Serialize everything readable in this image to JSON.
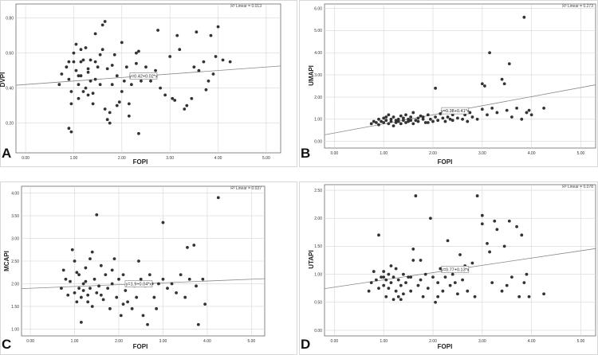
{
  "chart_data": [
    {
      "type": "scatter",
      "panel_label": "A",
      "xlabel": "FOPI",
      "ylabel": "DVPI",
      "xlim": [
        -0.2,
        5.3
      ],
      "ylim": [
        0.03,
        0.88
      ],
      "xticks": [
        "0.00",
        "1.00",
        "2.00",
        "3.00",
        "4.00",
        "5.00"
      ],
      "yticks": [
        "0.20",
        "0.40",
        "0.60",
        "0.80"
      ],
      "grid": true,
      "r2_label": "R² Linear = 0.013",
      "equation_label": "y=0.42+0.02*x",
      "fit_line": {
        "intercept": 0.42,
        "slope": 0.02
      },
      "points": [
        [
          0.7,
          0.42
        ],
        [
          0.75,
          0.48
        ],
        [
          0.85,
          0.52
        ],
        [
          0.9,
          0.55
        ],
        [
          0.9,
          0.45
        ],
        [
          0.95,
          0.31
        ],
        [
          0.95,
          0.38
        ],
        [
          1.0,
          0.55
        ],
        [
          1.0,
          0.6
        ],
        [
          1.05,
          0.65
        ],
        [
          1.05,
          0.5
        ],
        [
          1.1,
          0.34
        ],
        [
          1.1,
          0.42
        ],
        [
          1.15,
          0.62
        ],
        [
          1.15,
          0.47
        ],
        [
          1.2,
          0.56
        ],
        [
          1.2,
          0.38
        ],
        [
          1.25,
          0.4
        ],
        [
          1.25,
          0.63
        ],
        [
          1.3,
          0.36
        ],
        [
          1.3,
          0.49
        ],
        [
          1.35,
          0.56
        ],
        [
          1.35,
          0.44
        ],
        [
          1.4,
          0.31
        ],
        [
          1.45,
          0.71
        ],
        [
          1.45,
          0.45
        ],
        [
          1.5,
          0.52
        ],
        [
          1.55,
          0.59
        ],
        [
          1.55,
          0.42
        ],
        [
          1.6,
          0.76
        ],
        [
          1.6,
          0.62
        ],
        [
          1.65,
          0.78
        ],
        [
          1.65,
          0.28
        ],
        [
          1.7,
          0.22
        ],
        [
          1.7,
          0.51
        ],
        [
          1.75,
          0.2
        ],
        [
          1.8,
          0.53
        ],
        [
          1.8,
          0.42
        ],
        [
          1.85,
          0.59
        ],
        [
          1.9,
          0.47
        ],
        [
          1.95,
          0.32
        ],
        [
          2.0,
          0.66
        ],
        [
          2.0,
          0.38
        ],
        [
          2.05,
          0.44
        ],
        [
          2.1,
          0.52
        ],
        [
          2.15,
          0.31
        ],
        [
          2.2,
          0.42
        ],
        [
          2.25,
          0.48
        ],
        [
          2.3,
          0.6
        ],
        [
          2.3,
          0.54
        ],
        [
          2.35,
          0.61
        ],
        [
          2.35,
          0.14
        ],
        [
          2.4,
          0.44
        ],
        [
          2.5,
          0.52
        ],
        [
          2.6,
          0.44
        ],
        [
          2.7,
          0.5
        ],
        [
          2.75,
          0.73
        ],
        [
          2.8,
          0.4
        ],
        [
          2.9,
          0.36
        ],
        [
          3.0,
          0.58
        ],
        [
          3.05,
          0.34
        ],
        [
          3.1,
          0.33
        ],
        [
          3.15,
          0.7
        ],
        [
          3.2,
          0.62
        ],
        [
          3.3,
          0.28
        ],
        [
          3.35,
          0.3
        ],
        [
          3.45,
          0.34
        ],
        [
          3.5,
          0.52
        ],
        [
          3.55,
          0.72
        ],
        [
          3.6,
          0.5
        ],
        [
          3.7,
          0.55
        ],
        [
          3.75,
          0.39
        ],
        [
          3.8,
          0.44
        ],
        [
          3.85,
          0.7
        ],
        [
          3.9,
          0.48
        ],
        [
          3.95,
          0.58
        ],
        [
          4.0,
          0.75
        ],
        [
          4.1,
          0.56
        ],
        [
          4.25,
          0.55
        ],
        [
          1.45,
          0.55
        ],
        [
          1.1,
          0.47
        ],
        [
          0.9,
          0.17
        ],
        [
          0.95,
          0.15
        ],
        [
          1.9,
          0.3
        ],
        [
          2.15,
          0.24
        ],
        [
          1.75,
          0.26
        ],
        [
          1.3,
          0.51
        ],
        [
          1.15,
          0.55
        ],
        [
          1.4,
          0.37
        ]
      ]
    },
    {
      "type": "scatter",
      "panel_label": "B",
      "xlabel": "FOPI",
      "ylabel": "UMAPI",
      "xlim": [
        -0.2,
        5.3
      ],
      "ylim": [
        -0.3,
        6.2
      ],
      "xticks": [
        "0.00",
        "1.00",
        "2.00",
        "3.00",
        "4.00",
        "5.00"
      ],
      "yticks": [
        "0.00",
        "1.00",
        "2.00",
        "3.00",
        "4.00",
        "5.00",
        "6.00"
      ],
      "grid": true,
      "r2_label": "R² Linear = 0.273",
      "equation_label": "y=0.38+0.41*x",
      "fit_line": {
        "intercept": 0.38,
        "slope": 0.41
      },
      "points": [
        [
          0.75,
          0.8
        ],
        [
          0.8,
          0.9
        ],
        [
          0.85,
          0.85
        ],
        [
          0.9,
          1.0
        ],
        [
          0.9,
          0.75
        ],
        [
          0.95,
          0.9
        ],
        [
          1.0,
          1.05
        ],
        [
          1.0,
          0.85
        ],
        [
          1.05,
          1.1
        ],
        [
          1.05,
          0.95
        ],
        [
          1.1,
          0.8
        ],
        [
          1.1,
          1.2
        ],
        [
          1.15,
          0.9
        ],
        [
          1.15,
          1.0
        ],
        [
          1.2,
          0.7
        ],
        [
          1.2,
          1.1
        ],
        [
          1.25,
          0.95
        ],
        [
          1.25,
          0.85
        ],
        [
          1.3,
          1.0
        ],
        [
          1.3,
          0.9
        ],
        [
          1.35,
          1.15
        ],
        [
          1.35,
          0.8
        ],
        [
          1.4,
          1.05
        ],
        [
          1.4,
          0.95
        ],
        [
          1.45,
          1.2
        ],
        [
          1.45,
          0.85
        ],
        [
          1.5,
          1.0
        ],
        [
          1.5,
          0.9
        ],
        [
          1.55,
          1.1
        ],
        [
          1.6,
          0.8
        ],
        [
          1.6,
          1.3
        ],
        [
          1.65,
          0.95
        ],
        [
          1.7,
          1.05
        ],
        [
          1.7,
          0.9
        ],
        [
          1.75,
          1.15
        ],
        [
          1.8,
          1.0
        ],
        [
          1.85,
          0.85
        ],
        [
          1.9,
          1.2
        ],
        [
          1.95,
          1.0
        ],
        [
          2.0,
          0.9
        ],
        [
          2.05,
          1.1
        ],
        [
          2.05,
          2.4
        ],
        [
          2.1,
          0.95
        ],
        [
          2.15,
          1.25
        ],
        [
          2.2,
          1.3
        ],
        [
          2.25,
          0.9
        ],
        [
          2.3,
          1.1
        ],
        [
          2.35,
          1.0
        ],
        [
          2.4,
          1.2
        ],
        [
          2.5,
          1.05
        ],
        [
          2.55,
          1.4
        ],
        [
          2.6,
          1.0
        ],
        [
          2.65,
          1.2
        ],
        [
          2.7,
          0.9
        ],
        [
          2.75,
          1.3
        ],
        [
          2.8,
          1.1
        ],
        [
          2.9,
          1.0
        ],
        [
          3.0,
          1.45
        ],
        [
          3.0,
          2.6
        ],
        [
          3.05,
          2.5
        ],
        [
          3.1,
          1.2
        ],
        [
          3.15,
          4.0
        ],
        [
          3.2,
          1.5
        ],
        [
          3.3,
          1.3
        ],
        [
          3.4,
          2.8
        ],
        [
          3.45,
          2.6
        ],
        [
          3.5,
          1.4
        ],
        [
          3.55,
          3.5
        ],
        [
          3.6,
          1.1
        ],
        [
          3.7,
          1.5
        ],
        [
          3.8,
          1.0
        ],
        [
          3.85,
          5.6
        ],
        [
          3.9,
          1.3
        ],
        [
          3.95,
          1.4
        ],
        [
          4.0,
          1.2
        ],
        [
          4.25,
          1.5
        ],
        [
          1.8,
          1.1
        ],
        [
          1.55,
          0.95
        ],
        [
          2.4,
          0.95
        ],
        [
          1.9,
          0.85
        ],
        [
          2.2,
          1.05
        ]
      ]
    },
    {
      "type": "scatter",
      "panel_label": "C",
      "xlabel": "FOPI",
      "ylabel": "MCAPI",
      "xlim": [
        -0.2,
        5.3
      ],
      "ylim": [
        0.85,
        4.15
      ],
      "xticks": [
        "0.00",
        "1.00",
        "2.00",
        "3.00",
        "4.00",
        "5.00"
      ],
      "yticks": [
        "1.00",
        "1.50",
        "2.00",
        "2.50",
        "3.00",
        "3.50",
        "4.00"
      ],
      "grid": true,
      "r2_label": "R² Linear = 0.037",
      "equation_label": "y=1.9+0.04*x",
      "fit_line": {
        "intercept": 1.9,
        "slope": 0.04
      },
      "points": [
        [
          0.7,
          1.9
        ],
        [
          0.75,
          2.3
        ],
        [
          0.8,
          2.1
        ],
        [
          0.85,
          1.75
        ],
        [
          0.9,
          2.05
        ],
        [
          0.95,
          2.75
        ],
        [
          1.0,
          1.8
        ],
        [
          1.0,
          2.5
        ],
        [
          1.05,
          1.6
        ],
        [
          1.1,
          1.9
        ],
        [
          1.1,
          2.2
        ],
        [
          1.15,
          1.15
        ],
        [
          1.15,
          1.7
        ],
        [
          1.2,
          1.85
        ],
        [
          1.2,
          2.0
        ],
        [
          1.25,
          2.05
        ],
        [
          1.3,
          1.75
        ],
        [
          1.3,
          1.6
        ],
        [
          1.35,
          1.9
        ],
        [
          1.4,
          2.7
        ],
        [
          1.4,
          1.5
        ],
        [
          1.45,
          2.1
        ],
        [
          1.5,
          3.52
        ],
        [
          1.5,
          1.8
        ],
        [
          1.55,
          1.95
        ],
        [
          1.6,
          2.4
        ],
        [
          1.65,
          1.65
        ],
        [
          1.7,
          2.2
        ],
        [
          1.75,
          1.9
        ],
        [
          1.8,
          1.45
        ],
        [
          1.85,
          2.0
        ],
        [
          1.9,
          2.55
        ],
        [
          1.95,
          1.7
        ],
        [
          2.0,
          2.1
        ],
        [
          2.05,
          1.3
        ],
        [
          2.1,
          2.2
        ],
        [
          2.15,
          1.85
        ],
        [
          2.2,
          1.6
        ],
        [
          2.25,
          2.0
        ],
        [
          2.3,
          1.45
        ],
        [
          2.35,
          1.95
        ],
        [
          2.4,
          1.7
        ],
        [
          2.5,
          2.1
        ],
        [
          2.55,
          1.3
        ],
        [
          2.6,
          1.95
        ],
        [
          2.65,
          1.1
        ],
        [
          2.7,
          2.2
        ],
        [
          2.8,
          1.7
        ],
        [
          2.85,
          1.45
        ],
        [
          2.9,
          2.0
        ],
        [
          3.0,
          3.35
        ],
        [
          3.0,
          2.1
        ],
        [
          3.1,
          1.9
        ],
        [
          3.2,
          2.0
        ],
        [
          3.3,
          1.8
        ],
        [
          3.4,
          2.2
        ],
        [
          3.5,
          1.7
        ],
        [
          3.55,
          2.8
        ],
        [
          3.6,
          2.1
        ],
        [
          3.7,
          2.85
        ],
        [
          3.75,
          1.95
        ],
        [
          3.8,
          1.1
        ],
        [
          3.9,
          2.1
        ],
        [
          3.95,
          1.55
        ],
        [
          4.25,
          3.9
        ],
        [
          1.25,
          2.35
        ],
        [
          1.6,
          1.75
        ],
        [
          2.1,
          1.55
        ],
        [
          1.05,
          2.25
        ],
        [
          2.45,
          2.5
        ],
        [
          2.75,
          2.0
        ],
        [
          1.35,
          2.55
        ],
        [
          1.85,
          2.3
        ]
      ]
    },
    {
      "type": "scatter",
      "panel_label": "D",
      "xlabel": "FOPI",
      "ylabel": "UTAPI",
      "xlim": [
        -0.2,
        5.3
      ],
      "ylim": [
        -0.1,
        2.6
      ],
      "xticks": [
        "0.00",
        "1.00",
        "2.00",
        "3.00",
        "4.00",
        "5.00"
      ],
      "yticks": [
        "0.00",
        "0.50",
        "1.00",
        "1.50",
        "2.00",
        "2.50"
      ],
      "grid": true,
      "r2_label": "R² Linear = 0.078",
      "equation_label": "y=0.77+0.13*x",
      "fit_line": {
        "intercept": 0.77,
        "slope": 0.13
      },
      "points": [
        [
          0.7,
          0.7
        ],
        [
          0.75,
          0.85
        ],
        [
          0.8,
          1.05
        ],
        [
          0.85,
          0.9
        ],
        [
          0.9,
          1.7
        ],
        [
          0.9,
          0.75
        ],
        [
          0.95,
          0.95
        ],
        [
          1.0,
          0.8
        ],
        [
          1.0,
          1.05
        ],
        [
          1.05,
          0.6
        ],
        [
          1.05,
          0.9
        ],
        [
          1.1,
          1.0
        ],
        [
          1.1,
          0.75
        ],
        [
          1.15,
          0.85
        ],
        [
          1.2,
          0.55
        ],
        [
          1.2,
          0.95
        ],
        [
          1.25,
          1.1
        ],
        [
          1.25,
          0.7
        ],
        [
          1.3,
          0.9
        ],
        [
          1.3,
          0.6
        ],
        [
          1.35,
          0.8
        ],
        [
          1.4,
          1.0
        ],
        [
          1.4,
          0.65
        ],
        [
          1.45,
          0.85
        ],
        [
          1.5,
          0.95
        ],
        [
          1.55,
          0.7
        ],
        [
          1.6,
          1.25
        ],
        [
          1.6,
          1.45
        ],
        [
          1.65,
          2.4
        ],
        [
          1.7,
          0.8
        ],
        [
          1.75,
          0.9
        ],
        [
          1.8,
          0.6
        ],
        [
          1.85,
          1.0
        ],
        [
          1.9,
          0.75
        ],
        [
          1.95,
          2.0
        ],
        [
          2.0,
          0.95
        ],
        [
          2.05,
          0.5
        ],
        [
          2.1,
          0.85
        ],
        [
          2.15,
          1.1
        ],
        [
          2.2,
          0.7
        ],
        [
          2.25,
          0.95
        ],
        [
          2.3,
          1.6
        ],
        [
          2.35,
          0.8
        ],
        [
          2.4,
          1.0
        ],
        [
          2.5,
          0.65
        ],
        [
          2.55,
          1.35
        ],
        [
          2.6,
          0.9
        ],
        [
          2.65,
          1.15
        ],
        [
          2.7,
          0.7
        ],
        [
          2.8,
          1.2
        ],
        [
          2.85,
          0.6
        ],
        [
          2.9,
          2.4
        ],
        [
          3.0,
          2.05
        ],
        [
          3.0,
          1.9
        ],
        [
          3.1,
          1.55
        ],
        [
          3.15,
          1.4
        ],
        [
          3.2,
          0.85
        ],
        [
          3.25,
          1.95
        ],
        [
          3.3,
          1.8
        ],
        [
          3.4,
          0.7
        ],
        [
          3.45,
          1.5
        ],
        [
          3.5,
          0.8
        ],
        [
          3.55,
          1.95
        ],
        [
          3.6,
          0.95
        ],
        [
          3.7,
          1.85
        ],
        [
          3.75,
          0.6
        ],
        [
          3.8,
          1.7
        ],
        [
          3.85,
          0.85
        ],
        [
          3.9,
          1.0
        ],
        [
          3.95,
          0.6
        ],
        [
          4.25,
          0.65
        ],
        [
          1.15,
          1.15
        ],
        [
          1.35,
          0.55
        ],
        [
          1.75,
          1.25
        ],
        [
          2.1,
          0.6
        ],
        [
          2.45,
          0.85
        ],
        [
          1.55,
          0.95
        ],
        [
          1.0,
          0.95
        ]
      ]
    }
  ]
}
